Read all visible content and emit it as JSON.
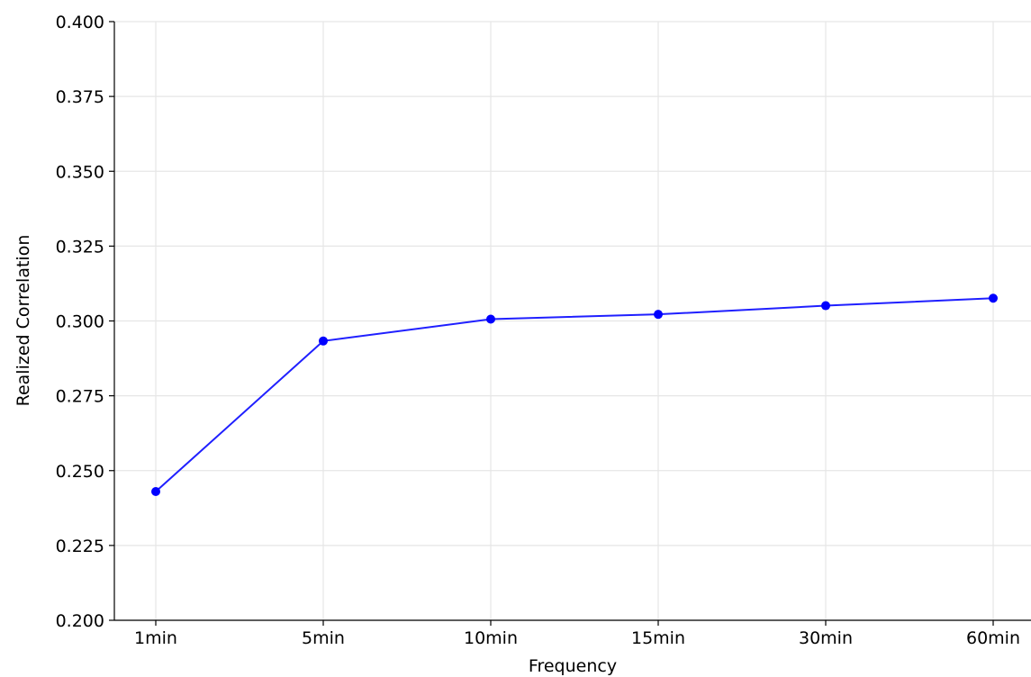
{
  "chart_data": {
    "type": "line",
    "title": "",
    "xlabel": "Frequency",
    "ylabel": "Realized Correlation",
    "categories": [
      "1min",
      "5min",
      "10min",
      "15min",
      "30min",
      "60min"
    ],
    "series": [
      {
        "values": [
          0.243,
          0.2933,
          0.3006,
          0.3022,
          0.3051,
          0.3076
        ]
      }
    ],
    "ylim": [
      0.2,
      0.4
    ],
    "yticks": [
      "0.200",
      "0.225",
      "0.250",
      "0.275",
      "0.300",
      "0.325",
      "0.350",
      "0.375",
      "0.400"
    ],
    "grid": true,
    "line_color": "#1f1fff",
    "marker_color": "#0000ff"
  }
}
